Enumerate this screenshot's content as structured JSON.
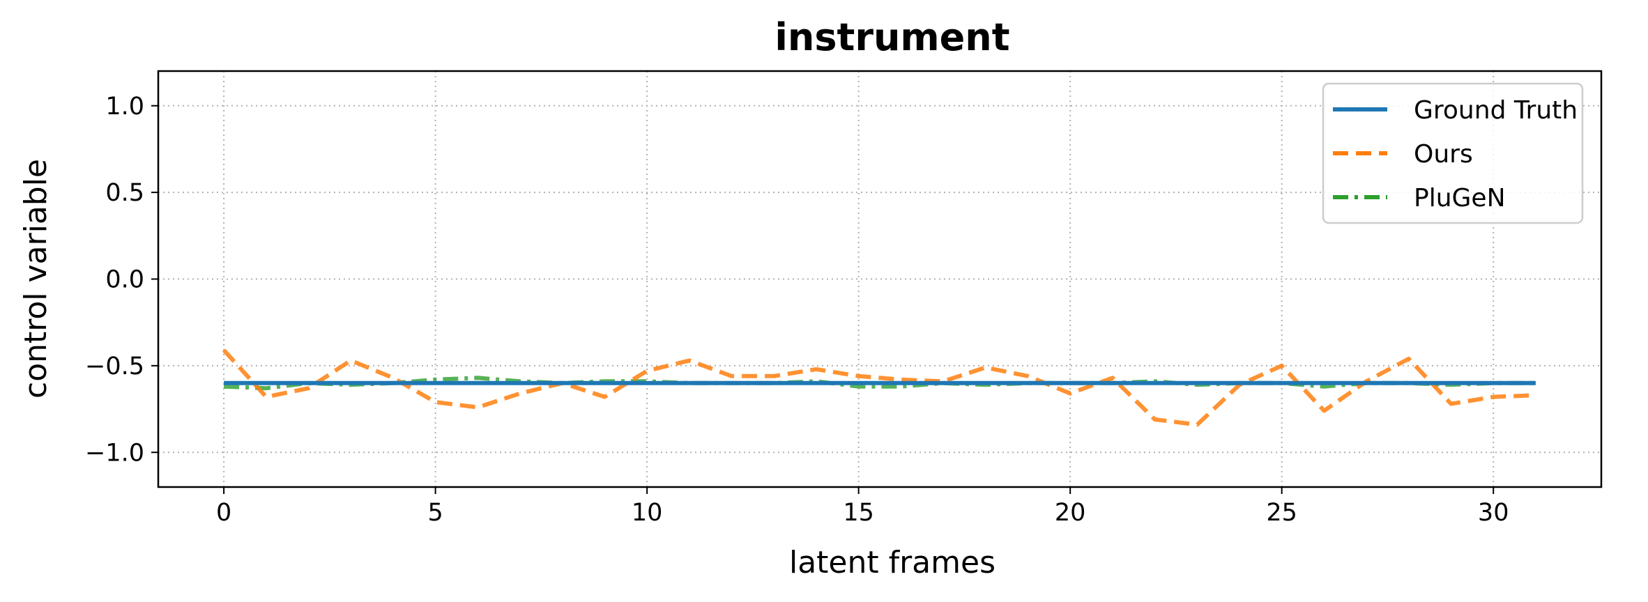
{
  "chart_data": {
    "type": "line",
    "title": "instrument",
    "xlabel": "latent frames",
    "ylabel": "control variable",
    "xlim": [
      -1.55,
      32.55
    ],
    "ylim": [
      -1.2,
      1.2
    ],
    "xticks": [
      0,
      5,
      10,
      15,
      20,
      25,
      30
    ],
    "xtick_labels": [
      "0",
      "5",
      "10",
      "15",
      "20",
      "25",
      "30"
    ],
    "yticks": [
      1.0,
      0.5,
      0.0,
      -0.5,
      -1.0
    ],
    "ytick_labels": [
      "1.0",
      "0.5",
      "0.0",
      "−0.5",
      "−1.0"
    ],
    "grid": true,
    "legend_position": "top-right",
    "x": [
      0,
      1,
      2,
      3,
      4,
      5,
      6,
      7,
      8,
      9,
      10,
      11,
      12,
      13,
      14,
      15,
      16,
      17,
      18,
      19,
      20,
      21,
      22,
      23,
      24,
      25,
      26,
      27,
      28,
      29,
      30,
      31
    ],
    "series": [
      {
        "name": "Ground Truth",
        "color": "#1f77b4",
        "style": "solid",
        "values": [
          -0.6,
          -0.6,
          -0.6,
          -0.6,
          -0.6,
          -0.6,
          -0.6,
          -0.6,
          -0.6,
          -0.6,
          -0.6,
          -0.6,
          -0.6,
          -0.6,
          -0.6,
          -0.6,
          -0.6,
          -0.6,
          -0.6,
          -0.6,
          -0.6,
          -0.6,
          -0.6,
          -0.6,
          -0.6,
          -0.6,
          -0.6,
          -0.6,
          -0.6,
          -0.6,
          -0.6,
          -0.6
        ]
      },
      {
        "name": "Ours",
        "color": "#ff7f0e",
        "style": "dashed",
        "values": [
          -0.41,
          -0.68,
          -0.63,
          -0.47,
          -0.57,
          -0.71,
          -0.74,
          -0.66,
          -0.6,
          -0.68,
          -0.53,
          -0.47,
          -0.56,
          -0.56,
          -0.52,
          -0.56,
          -0.58,
          -0.59,
          -0.51,
          -0.56,
          -0.66,
          -0.57,
          -0.81,
          -0.84,
          -0.61,
          -0.5,
          -0.76,
          -0.59,
          -0.46,
          -0.72,
          -0.68,
          -0.67
        ]
      },
      {
        "name": "PluGeN",
        "color": "#2ca02c",
        "style": "dashdot",
        "values": [
          -0.62,
          -0.63,
          -0.6,
          -0.61,
          -0.6,
          -0.58,
          -0.57,
          -0.59,
          -0.6,
          -0.59,
          -0.59,
          -0.6,
          -0.6,
          -0.6,
          -0.59,
          -0.62,
          -0.62,
          -0.6,
          -0.61,
          -0.6,
          -0.6,
          -0.6,
          -0.59,
          -0.61,
          -0.6,
          -0.6,
          -0.62,
          -0.6,
          -0.6,
          -0.61,
          -0.6,
          -0.6
        ]
      }
    ]
  }
}
